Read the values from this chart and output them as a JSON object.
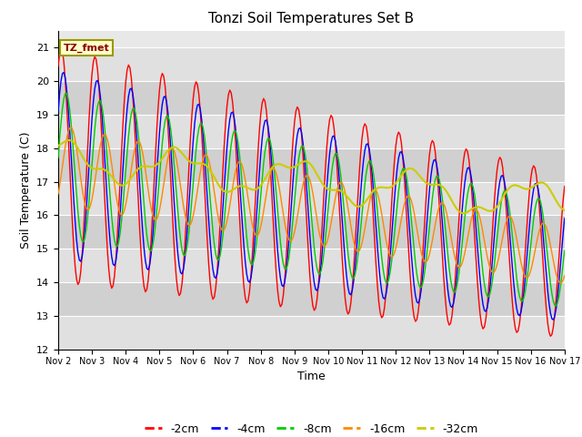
{
  "title": "Tonzi Soil Temperatures Set B",
  "xlabel": "Time",
  "ylabel": "Soil Temperature (C)",
  "ylim": [
    12.0,
    21.5
  ],
  "xlim": [
    0,
    360
  ],
  "yticks": [
    12.0,
    13.0,
    14.0,
    15.0,
    16.0,
    17.0,
    18.0,
    19.0,
    20.0,
    21.0
  ],
  "xtick_labels": [
    "Nov 2",
    "Nov 3",
    "Nov 4",
    "Nov 5",
    "Nov 6",
    "Nov 7",
    "Nov 8",
    "Nov 9",
    "Nov 10",
    "Nov 11",
    "Nov 12",
    "Nov 13",
    "Nov 14",
    "Nov 15",
    "Nov 16",
    "Nov 17"
  ],
  "xtick_positions": [
    0,
    24,
    48,
    72,
    96,
    120,
    144,
    168,
    192,
    216,
    240,
    264,
    288,
    312,
    336,
    360
  ],
  "colors": {
    "-2cm": "#ff0000",
    "-4cm": "#0000ff",
    "-8cm": "#00cc00",
    "-16cm": "#ff8800",
    "-32cm": "#cccc00"
  },
  "legend_label": "TZ_fmet",
  "background_color": "#ffffff",
  "plot_bg_color": "#e8e8e8",
  "band_colors": [
    "#e0e0e0",
    "#d0d0d0"
  ],
  "n_hours": 361
}
